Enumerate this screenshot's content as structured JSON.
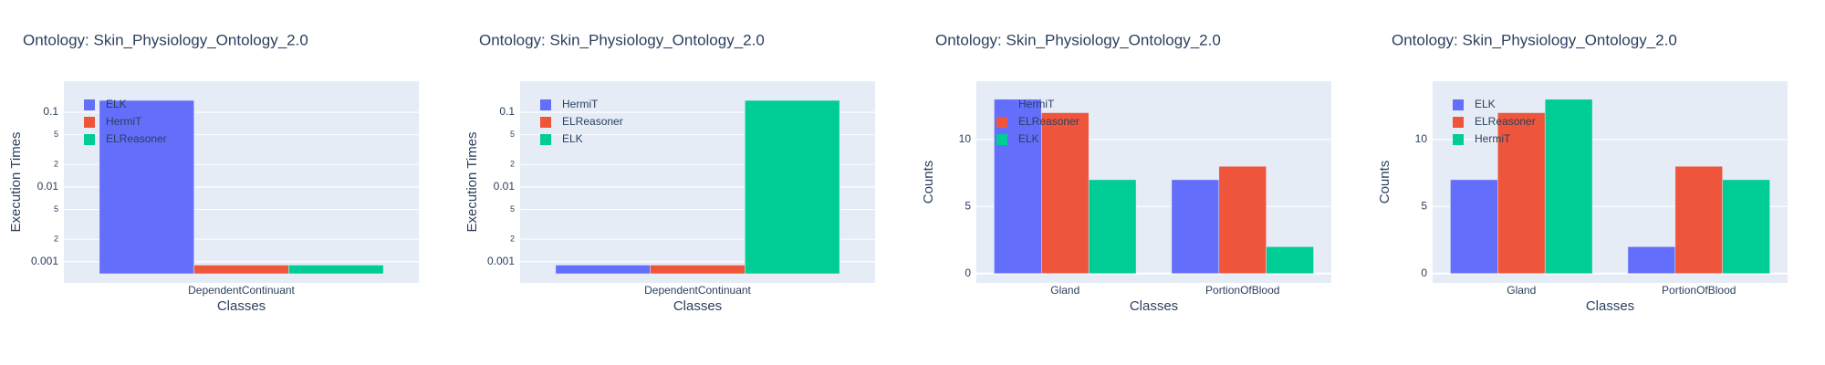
{
  "chart_data": [
    {
      "type": "bar",
      "title": "Ontology: Skin_Physiology_Ontology_2.0",
      "xlabel": "Classes",
      "ylabel": "Execution Times",
      "log_scale": true,
      "grid": true,
      "categories": [
        "DependentContinuant"
      ],
      "series": [
        {
          "name": "ELK",
          "color": "#636efa",
          "values": [
            0.144
          ]
        },
        {
          "name": "HermiT",
          "color": "#ef553b",
          "values": [
            0.0009
          ]
        },
        {
          "name": "ELReasoner",
          "color": "#00cc96",
          "values": [
            0.0009
          ]
        }
      ],
      "ylim": [
        0.00052,
        0.26
      ],
      "yticks": [
        0.001,
        {
          "value": 0.002,
          "label": "2"
        },
        {
          "value": 0.005,
          "label": "5"
        },
        0.01,
        {
          "value": 0.02,
          "label": "2"
        },
        {
          "value": 0.05,
          "label": "5"
        },
        0.1
      ]
    },
    {
      "type": "bar",
      "title": "Ontology: Skin_Physiology_Ontology_2.0",
      "xlabel": "Classes",
      "ylabel": "Execution Times",
      "log_scale": true,
      "grid": true,
      "categories": [
        "DependentContinuant"
      ],
      "series": [
        {
          "name": "HermiT",
          "color": "#636efa",
          "values": [
            0.0009
          ]
        },
        {
          "name": "ELReasoner",
          "color": "#ef553b",
          "values": [
            0.0009
          ]
        },
        {
          "name": "ELK",
          "color": "#00cc96",
          "values": [
            0.144
          ]
        }
      ],
      "ylim": [
        0.00052,
        0.26
      ],
      "yticks": [
        0.001,
        {
          "value": 0.002,
          "label": "2"
        },
        {
          "value": 0.005,
          "label": "5"
        },
        0.01,
        {
          "value": 0.02,
          "label": "2"
        },
        {
          "value": 0.05,
          "label": "5"
        },
        0.1
      ]
    },
    {
      "type": "bar",
      "title": "Ontology: Skin_Physiology_Ontology_2.0",
      "xlabel": "Classes",
      "ylabel": "Counts",
      "log_scale": false,
      "grid": true,
      "categories": [
        "Gland",
        "PortionOfBlood"
      ],
      "series": [
        {
          "name": "HermiT",
          "color": "#636efa",
          "values": [
            13,
            7
          ]
        },
        {
          "name": "ELReasoner",
          "color": "#ef553b",
          "values": [
            12,
            8
          ]
        },
        {
          "name": "ELK",
          "color": "#00cc96",
          "values": [
            7,
            2
          ]
        }
      ],
      "ylim": [
        -0.7,
        14.35
      ],
      "yticks": [
        0,
        5,
        10
      ]
    },
    {
      "type": "bar",
      "title": "Ontology: Skin_Physiology_Ontology_2.0",
      "xlabel": "Classes",
      "ylabel": "Counts",
      "log_scale": false,
      "grid": true,
      "categories": [
        "Gland",
        "PortionOfBlood"
      ],
      "series": [
        {
          "name": "ELK",
          "color": "#636efa",
          "values": [
            7,
            2
          ]
        },
        {
          "name": "ELReasoner",
          "color": "#ef553b",
          "values": [
            12,
            8
          ]
        },
        {
          "name": "HermiT",
          "color": "#00cc96",
          "values": [
            13,
            7
          ]
        }
      ],
      "ylim": [
        -0.7,
        14.35
      ],
      "yticks": [
        0,
        5,
        10
      ]
    }
  ]
}
